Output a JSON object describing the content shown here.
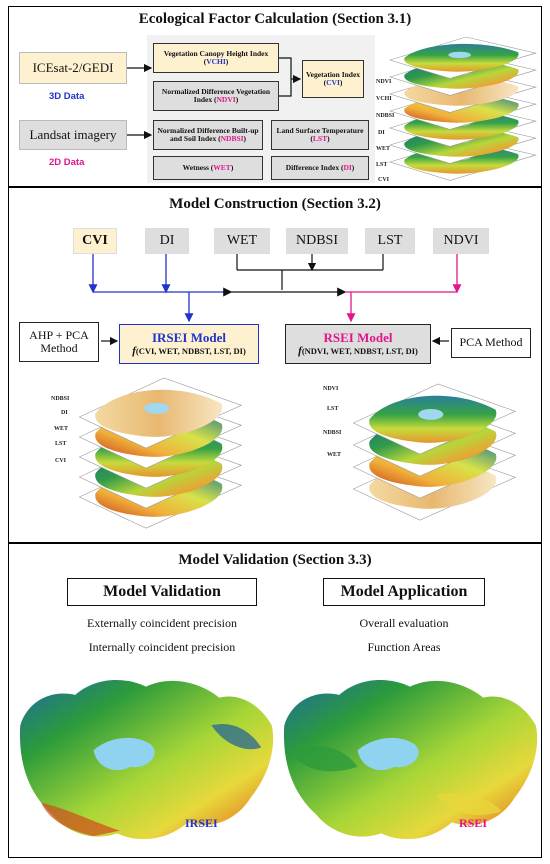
{
  "section1": {
    "title": "Ecological Factor Calculation (Section 3.1)",
    "source_3d": "ICEsat-2/GEDI",
    "label_3d": "3D Data",
    "source_2d": "Landsat imagery",
    "label_2d": "2D Data",
    "vchi_text": "Vegetation Canopy Height Index",
    "vchi_abbr": "VCHI",
    "ndvi_text": "Normalized Difference Vegetation Index",
    "ndvi_abbr": "NDVI",
    "cvi_text": "Vegetation Index",
    "cvi_abbr": "CVI",
    "ndbsi_text": "Normalized Difference Built-up and Soil Index",
    "ndbsi_abbr": "NDBSI",
    "lst_text": "Land Surface Temperature",
    "lst_abbr": "LST",
    "wet_text": "Wetness",
    "wet_abbr": "WET",
    "di_text": "Difference Index",
    "di_abbr": "DI",
    "layer_labels": [
      "NDVI",
      "VCHI",
      "NDBSI",
      "DI",
      "WET",
      "LST",
      "CVI"
    ]
  },
  "section2": {
    "title": "Model Construction (Section 3.2)",
    "factors": [
      "CVI",
      "DI",
      "WET",
      "NDBSI",
      "LST",
      "NDVI"
    ],
    "ahp_method": "AHP + PCA Method",
    "irsei_title": "IRSEI Model",
    "irsei_formula_f": "f",
    "irsei_formula": "(CVI, WET, NDBST, LST, DI)",
    "rsei_title": "RSEI Model",
    "rsei_formula_f": "f",
    "rsei_formula": "(NDVI, WET, NDBST, LST, DI)",
    "pca_method": "PCA Method",
    "left_layer_labels": [
      "NDBSI",
      "DI",
      "WET",
      "LST",
      "CVI"
    ],
    "right_layer_labels": [
      "NDVI",
      "LST",
      "NDBSI",
      "WET"
    ]
  },
  "section3": {
    "title": "Model Validation (Section 3.3)",
    "validation_title": "Model Validation",
    "validation_items": [
      "Externally coincident precision",
      "Internally coincident precision"
    ],
    "application_title": "Model Application",
    "application_items": [
      "Overall evaluation",
      "Function Areas"
    ],
    "map_left_label": "IRSEI",
    "map_right_label": "RSEI"
  },
  "colors": {
    "blue_accent": "#2233cc",
    "pink_accent": "#e0168c",
    "yellow_box": "#fdf1cf",
    "gray_box": "#dedede"
  }
}
